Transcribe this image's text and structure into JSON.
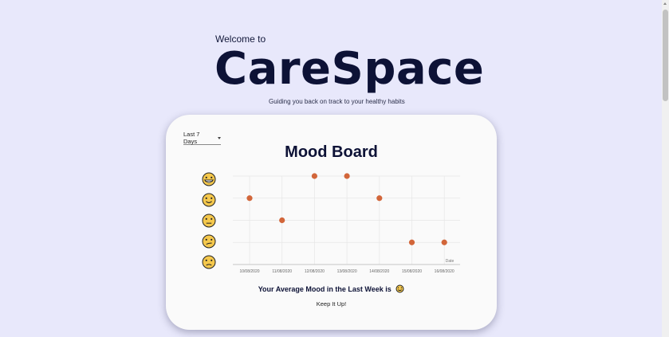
{
  "header": {
    "welcome": "Welcome to",
    "brand": "CareSpace",
    "tagline": "Guiding you back on track to your healthy habits"
  },
  "card": {
    "range_select": "Last 7 Days",
    "title": "Mood Board",
    "average_text": "Your Average Mood in the Last Week is",
    "average_mood": "slightly-smiling",
    "encouragement": "Keep It Up!"
  },
  "mood_scale": [
    "grinning",
    "smiling",
    "neutral",
    "confused",
    "frowning"
  ],
  "chart_data": {
    "type": "scatter",
    "xlabel": "Date",
    "x": [
      "10/08/2020",
      "11/08/2020",
      "12/08/2020",
      "13/08/2020",
      "14/08/2020",
      "15/08/2020",
      "16/08/2020"
    ],
    "y_levels": 5,
    "values": [
      4,
      3,
      5,
      5,
      4,
      2,
      2
    ],
    "ylim": [
      1,
      5
    ],
    "grid": true,
    "point_color": "#d2663a"
  },
  "colors": {
    "background": "#e8e8fb",
    "card": "#fafafa",
    "emoji_fill": "#f5c84c",
    "point": "#d2663a"
  }
}
